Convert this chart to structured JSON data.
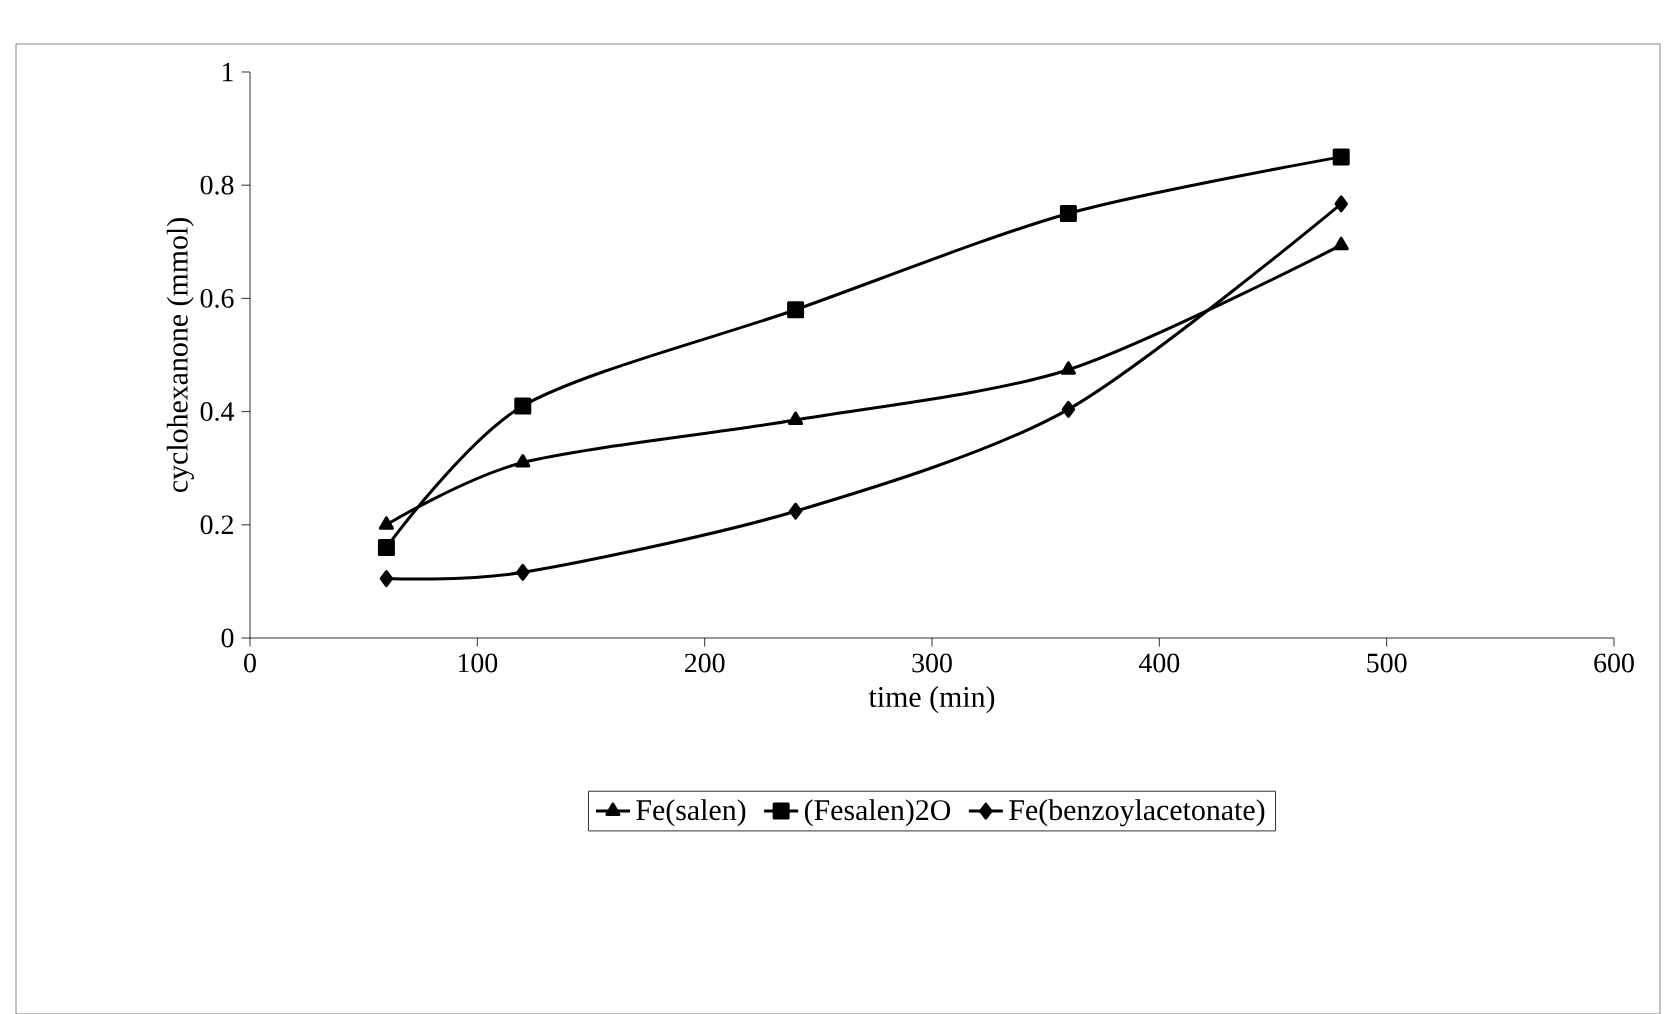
{
  "chart_data": {
    "type": "line",
    "xlabel": "time (min)",
    "ylabel": "cyclohexanone (mmol)",
    "x": [
      60,
      120,
      240,
      360,
      480
    ],
    "series": [
      {
        "name": "Fe(salen)",
        "color": "#000000",
        "marker": "triangle",
        "values": [
          0.2,
          0.31,
          0.385,
          0.474,
          0.694
        ]
      },
      {
        "name": "(Fesalen)2O",
        "color": "#000000",
        "marker": "square",
        "values": [
          0.16,
          0.41,
          0.58,
          0.75,
          0.85
        ]
      },
      {
        "name": "Fe(benzoylacetonate)",
        "color": "#000000",
        "marker": "diamond",
        "values": [
          0.105,
          0.116,
          0.224,
          0.404,
          0.767
        ]
      }
    ],
    "xlim": [
      0,
      600
    ],
    "xticks": [
      0,
      100,
      200,
      300,
      400,
      500,
      600
    ],
    "ylim": [
      0,
      1
    ],
    "yticks": [
      0,
      0.2,
      0.4,
      0.6,
      0.8,
      1
    ],
    "grid": false,
    "legend": "bottom",
    "line_style": "solid"
  }
}
